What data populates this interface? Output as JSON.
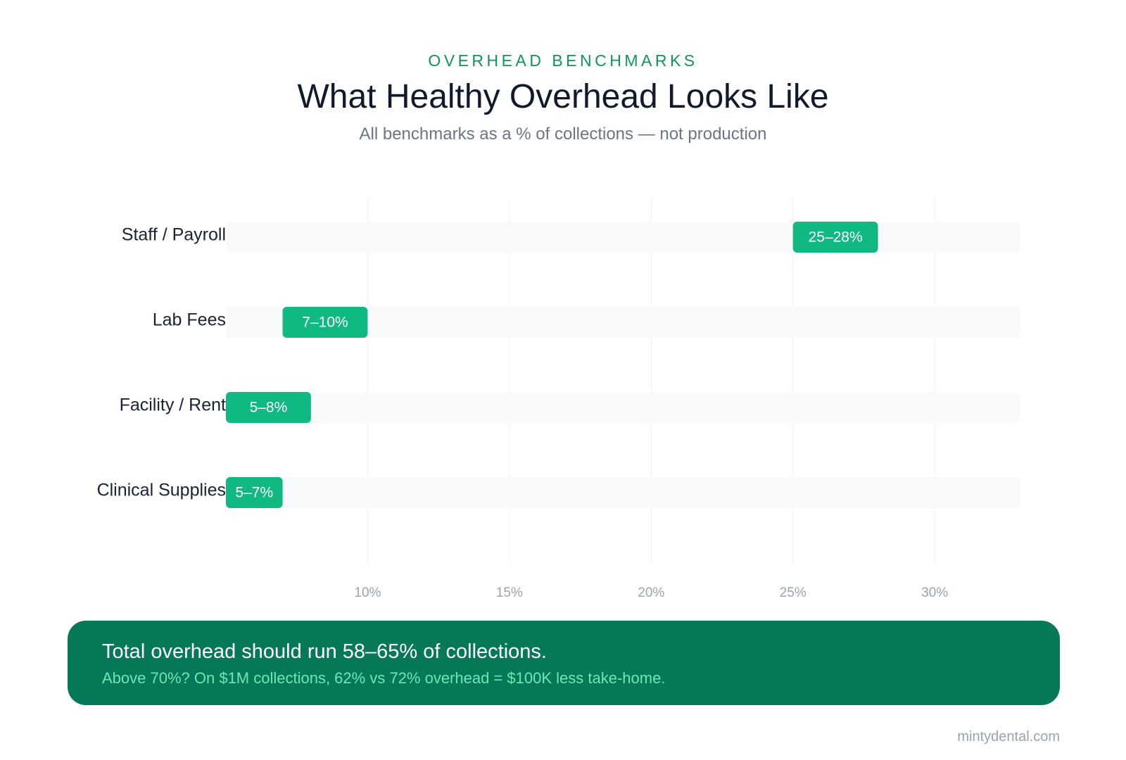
{
  "header": {
    "eyebrow": "OVERHEAD BENCHMARKS",
    "title": "What Healthy Overhead Looks Like",
    "subtitle": "All benchmarks as a % of collections — not production"
  },
  "chart_data": {
    "type": "bar",
    "orientation": "horizontal-range",
    "categories": [
      "Staff / Payroll",
      "Lab Fees",
      "Facility / Rent",
      "Clinical Supplies"
    ],
    "ranges": [
      [
        25,
        28
      ],
      [
        7,
        10
      ],
      [
        5,
        8
      ],
      [
        5,
        7
      ]
    ],
    "labels": [
      "25–28%",
      "7–10%",
      "5–8%",
      "5–7%"
    ],
    "xlim": [
      5,
      33
    ],
    "xticks": [
      10,
      15,
      20,
      25,
      30
    ],
    "xtick_labels": [
      "10%",
      "15%",
      "20%",
      "25%",
      "30%"
    ],
    "grid": true,
    "colors": {
      "bar": "#10b981",
      "bar_text": "#ffffff",
      "track": "#f8f9fb",
      "grid": "#eef0f3",
      "tick_text": "#9aa3ae",
      "label_text": "#1a2233"
    }
  },
  "callout": {
    "headline": "Total overhead should run 58–65% of collections.",
    "body": "Above 70%? On $1M collections, 62% vs 72% overhead = $100K less take-home."
  },
  "footer": {
    "brand": "mintydental.com"
  },
  "colors": {
    "accent": "#10945f",
    "callout_bg": "#047857",
    "callout_body": "#6ee7b7"
  }
}
